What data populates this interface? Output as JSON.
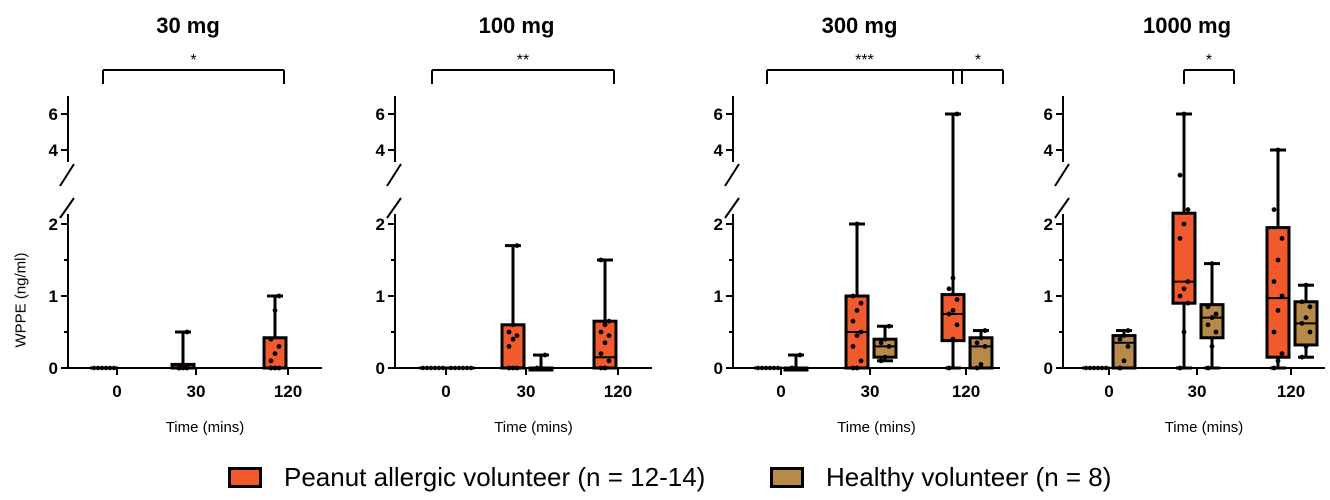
{
  "legend": {
    "items": [
      {
        "label": "Peanut allergic volunteer (n = 12-14)",
        "color": "#f05a2c"
      },
      {
        "label": "Healthy volunteer (n = 8)",
        "color": "#b88a4a"
      }
    ]
  },
  "shared": {
    "ylabel": "WPPE (ng/ml)",
    "xlabel": "Time (mins)"
  },
  "chart_data": [
    {
      "type": "box",
      "title": "30 mg",
      "xlabel": "Time (mins)",
      "ylabel": "WPPE (ng/ml)",
      "x_categories": [
        "0",
        "30",
        "120"
      ],
      "y_axis": {
        "lower_ticks": [
          0,
          1,
          2
        ],
        "upper_ticks": [
          4,
          6
        ],
        "break": true
      },
      "series": [
        {
          "name": "Peanut allergic volunteer (n = 12-14)",
          "color": "#f05a2c",
          "boxes": [
            {
              "category": "0",
              "min": 0,
              "q1": 0,
              "median": 0,
              "q3": 0,
              "max": 0,
              "points": [
                0
              ]
            },
            {
              "category": "30",
              "min": 0,
              "q1": 0,
              "median": 0,
              "q3": 0.05,
              "max": 0.5,
              "points": [
                0,
                0,
                0,
                0,
                0.05,
                0.5
              ]
            },
            {
              "category": "120",
              "min": 0,
              "q1": 0,
              "median": 0,
              "q3": 0.42,
              "max": 1.0,
              "points": [
                0,
                0,
                0,
                0.1,
                0.2,
                0.3,
                0.4,
                0.8,
                1.0
              ]
            }
          ]
        }
      ],
      "significance": [
        {
          "from": "0",
          "to": "120",
          "label": "*"
        }
      ]
    },
    {
      "type": "box",
      "title": "100 mg",
      "xlabel": "Time (mins)",
      "ylabel": "WPPE (ng/ml)",
      "x_categories": [
        "0",
        "30",
        "120"
      ],
      "y_axis": {
        "lower_ticks": [
          0,
          1,
          2
        ],
        "upper_ticks": [
          4,
          6
        ],
        "break": true
      },
      "series": [
        {
          "name": "Peanut allergic volunteer (n = 12-14)",
          "color": "#f05a2c",
          "boxes": [
            {
              "category": "0",
              "min": 0,
              "q1": 0,
              "median": 0,
              "q3": 0,
              "max": 0,
              "points": [
                0
              ]
            },
            {
              "category": "30",
              "min": 0,
              "q1": 0,
              "median": 0,
              "q3": 0.6,
              "max": 1.7,
              "points": [
                0,
                0,
                0,
                0.3,
                0.4,
                0.45,
                0.5,
                0.6,
                1.7
              ]
            },
            {
              "category": "120",
              "min": 0,
              "q1": 0,
              "median": 0.15,
              "q3": 0.65,
              "max": 1.5,
              "points": [
                0,
                0,
                0.1,
                0.2,
                0.35,
                0.45,
                0.5,
                0.6,
                0.65,
                1.5
              ]
            }
          ]
        },
        {
          "name": "Healthy volunteer (n = 8)",
          "color": "#b88a4a",
          "boxes": [
            {
              "category": "0",
              "min": 0,
              "q1": 0,
              "median": 0,
              "q3": 0,
              "max": 0,
              "points": [
                0
              ]
            },
            {
              "category": "30",
              "min": 0,
              "q1": 0,
              "median": 0,
              "q3": 0,
              "max": 0.18,
              "points": [
                0,
                0,
                0.18
              ]
            }
          ]
        }
      ],
      "significance": [
        {
          "from": "0",
          "to": "120",
          "label": "**"
        }
      ]
    },
    {
      "type": "box",
      "title": "300 mg",
      "xlabel": "Time (mins)",
      "ylabel": "WPPE (ng/ml)",
      "x_categories": [
        "0",
        "30",
        "120"
      ],
      "y_axis": {
        "lower_ticks": [
          0,
          1,
          2
        ],
        "upper_ticks": [
          4,
          6
        ],
        "break": true
      },
      "series": [
        {
          "name": "Peanut allergic volunteer (n = 12-14)",
          "color": "#f05a2c",
          "boxes": [
            {
              "category": "0",
              "min": 0,
              "q1": 0,
              "median": 0,
              "q3": 0,
              "max": 0,
              "points": [
                0
              ]
            },
            {
              "category": "30",
              "min": 0,
              "q1": 0,
              "median": 0.5,
              "q3": 1.0,
              "max": 2.0,
              "points": [
                0,
                0,
                0.1,
                0.3,
                0.45,
                0.5,
                0.65,
                0.8,
                0.9,
                1.0,
                2.0
              ]
            },
            {
              "category": "120",
              "min": 0,
              "q1": 0.38,
              "median": 0.75,
              "q3": 1.02,
              "max": 6.0,
              "points": [
                0,
                0.4,
                0.6,
                0.75,
                0.8,
                0.95,
                1.1,
                1.25,
                6.0
              ]
            }
          ]
        },
        {
          "name": "Healthy volunteer (n = 8)",
          "color": "#b88a4a",
          "boxes": [
            {
              "category": "0",
              "min": 0,
              "q1": 0,
              "median": 0,
              "q3": 0,
              "max": 0.18,
              "points": [
                0,
                0,
                0.18
              ]
            },
            {
              "category": "30",
              "min": 0.1,
              "q1": 0.15,
              "median": 0.3,
              "q3": 0.4,
              "max": 0.58,
              "points": [
                0.1,
                0.15,
                0.3,
                0.35,
                0.4,
                0.58
              ]
            },
            {
              "category": "120",
              "min": 0,
              "q1": 0,
              "median": 0.3,
              "q3": 0.42,
              "max": 0.52,
              "points": [
                0,
                0.05,
                0.3,
                0.35,
                0.42,
                0.52
              ]
            }
          ]
        }
      ],
      "significance": [
        {
          "from": "0",
          "to": "120",
          "label": "***"
        },
        {
          "from": "120",
          "to": "120 healthy",
          "label": "*"
        }
      ]
    },
    {
      "type": "box",
      "title": "1000 mg",
      "xlabel": "Time (mins)",
      "ylabel": "WPPE (ng/ml)",
      "x_categories": [
        "0",
        "30",
        "120"
      ],
      "y_axis": {
        "lower_ticks": [
          0,
          1,
          2
        ],
        "upper_ticks": [
          4,
          6
        ],
        "break": true
      },
      "series": [
        {
          "name": "Peanut allergic volunteer (n = 12-14)",
          "color": "#f05a2c",
          "boxes": [
            {
              "category": "0",
              "min": 0,
              "q1": 0,
              "median": 0,
              "q3": 0,
              "max": 0,
              "points": [
                0
              ]
            },
            {
              "category": "30",
              "min": 0,
              "q1": 0.9,
              "median": 1.2,
              "q3": 2.15,
              "max": 6.0,
              "points": [
                0,
                0.5,
                0.9,
                1.0,
                1.1,
                1.2,
                1.8,
                2.0,
                2.2,
                2.6,
                6.0
              ]
            },
            {
              "category": "120",
              "min": 0,
              "q1": 0.15,
              "median": 0.97,
              "q3": 1.95,
              "max": 4.0,
              "points": [
                0,
                0.1,
                0.2,
                0.5,
                0.8,
                1.0,
                1.2,
                1.5,
                1.8,
                2.2,
                4.0
              ]
            }
          ]
        },
        {
          "name": "Healthy volunteer (n = 8)",
          "color": "#b88a4a",
          "boxes": [
            {
              "category": "0",
              "min": 0,
              "q1": 0,
              "median": 0.35,
              "q3": 0.45,
              "max": 0.52,
              "points": [
                0,
                0.1,
                0.3,
                0.4,
                0.45,
                0.52
              ]
            },
            {
              "category": "30",
              "min": 0,
              "q1": 0.42,
              "median": 0.7,
              "q3": 0.88,
              "max": 1.45,
              "points": [
                0,
                0.3,
                0.5,
                0.6,
                0.7,
                0.75,
                0.85,
                1.45
              ]
            },
            {
              "category": "120",
              "min": 0.15,
              "q1": 0.32,
              "median": 0.62,
              "q3": 0.92,
              "max": 1.15,
              "points": [
                0.15,
                0.3,
                0.5,
                0.62,
                0.7,
                0.85,
                0.92,
                1.15
              ]
            }
          ]
        }
      ],
      "significance": [
        {
          "from": "30",
          "to": "30 healthy",
          "label": "*"
        }
      ]
    }
  ]
}
